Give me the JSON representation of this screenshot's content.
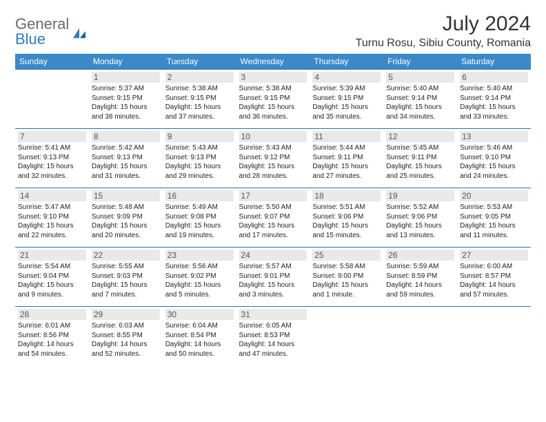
{
  "logo": {
    "text1": "General",
    "text2": "Blue"
  },
  "title": "July 2024",
  "location": "Turnu Rosu, Sibiu County, Romania",
  "colors": {
    "header_bg": "#3b89c9",
    "header_text": "#ffffff",
    "border": "#2f6fa3",
    "daynum_bg": "#e9e9e9",
    "logo_gray": "#6a6a6a",
    "logo_blue": "#2f7bbf"
  },
  "weekdays": [
    "Sunday",
    "Monday",
    "Tuesday",
    "Wednesday",
    "Thursday",
    "Friday",
    "Saturday"
  ],
  "weeks": [
    [
      null,
      {
        "d": "1",
        "sr": "5:37 AM",
        "ss": "9:15 PM",
        "dl": "15 hours and 38 minutes."
      },
      {
        "d": "2",
        "sr": "5:38 AM",
        "ss": "9:15 PM",
        "dl": "15 hours and 37 minutes."
      },
      {
        "d": "3",
        "sr": "5:38 AM",
        "ss": "9:15 PM",
        "dl": "15 hours and 36 minutes."
      },
      {
        "d": "4",
        "sr": "5:39 AM",
        "ss": "9:15 PM",
        "dl": "15 hours and 35 minutes."
      },
      {
        "d": "5",
        "sr": "5:40 AM",
        "ss": "9:14 PM",
        "dl": "15 hours and 34 minutes."
      },
      {
        "d": "6",
        "sr": "5:40 AM",
        "ss": "9:14 PM",
        "dl": "15 hours and 33 minutes."
      }
    ],
    [
      {
        "d": "7",
        "sr": "5:41 AM",
        "ss": "9:13 PM",
        "dl": "15 hours and 32 minutes."
      },
      {
        "d": "8",
        "sr": "5:42 AM",
        "ss": "9:13 PM",
        "dl": "15 hours and 31 minutes."
      },
      {
        "d": "9",
        "sr": "5:43 AM",
        "ss": "9:13 PM",
        "dl": "15 hours and 29 minutes."
      },
      {
        "d": "10",
        "sr": "5:43 AM",
        "ss": "9:12 PM",
        "dl": "15 hours and 28 minutes."
      },
      {
        "d": "11",
        "sr": "5:44 AM",
        "ss": "9:11 PM",
        "dl": "15 hours and 27 minutes."
      },
      {
        "d": "12",
        "sr": "5:45 AM",
        "ss": "9:11 PM",
        "dl": "15 hours and 25 minutes."
      },
      {
        "d": "13",
        "sr": "5:46 AM",
        "ss": "9:10 PM",
        "dl": "15 hours and 24 minutes."
      }
    ],
    [
      {
        "d": "14",
        "sr": "5:47 AM",
        "ss": "9:10 PM",
        "dl": "15 hours and 22 minutes."
      },
      {
        "d": "15",
        "sr": "5:48 AM",
        "ss": "9:09 PM",
        "dl": "15 hours and 20 minutes."
      },
      {
        "d": "16",
        "sr": "5:49 AM",
        "ss": "9:08 PM",
        "dl": "15 hours and 19 minutes."
      },
      {
        "d": "17",
        "sr": "5:50 AM",
        "ss": "9:07 PM",
        "dl": "15 hours and 17 minutes."
      },
      {
        "d": "18",
        "sr": "5:51 AM",
        "ss": "9:06 PM",
        "dl": "15 hours and 15 minutes."
      },
      {
        "d": "19",
        "sr": "5:52 AM",
        "ss": "9:06 PM",
        "dl": "15 hours and 13 minutes."
      },
      {
        "d": "20",
        "sr": "5:53 AM",
        "ss": "9:05 PM",
        "dl": "15 hours and 11 minutes."
      }
    ],
    [
      {
        "d": "21",
        "sr": "5:54 AM",
        "ss": "9:04 PM",
        "dl": "15 hours and 9 minutes."
      },
      {
        "d": "22",
        "sr": "5:55 AM",
        "ss": "9:03 PM",
        "dl": "15 hours and 7 minutes."
      },
      {
        "d": "23",
        "sr": "5:56 AM",
        "ss": "9:02 PM",
        "dl": "15 hours and 5 minutes."
      },
      {
        "d": "24",
        "sr": "5:57 AM",
        "ss": "9:01 PM",
        "dl": "15 hours and 3 minutes."
      },
      {
        "d": "25",
        "sr": "5:58 AM",
        "ss": "9:00 PM",
        "dl": "15 hours and 1 minute."
      },
      {
        "d": "26",
        "sr": "5:59 AM",
        "ss": "8:59 PM",
        "dl": "14 hours and 59 minutes."
      },
      {
        "d": "27",
        "sr": "6:00 AM",
        "ss": "8:57 PM",
        "dl": "14 hours and 57 minutes."
      }
    ],
    [
      {
        "d": "28",
        "sr": "6:01 AM",
        "ss": "8:56 PM",
        "dl": "14 hours and 54 minutes."
      },
      {
        "d": "29",
        "sr": "6:03 AM",
        "ss": "8:55 PM",
        "dl": "14 hours and 52 minutes."
      },
      {
        "d": "30",
        "sr": "6:04 AM",
        "ss": "8:54 PM",
        "dl": "14 hours and 50 minutes."
      },
      {
        "d": "31",
        "sr": "6:05 AM",
        "ss": "8:53 PM",
        "dl": "14 hours and 47 minutes."
      },
      null,
      null,
      null
    ]
  ],
  "labels": {
    "sunrise": "Sunrise:",
    "sunset": "Sunset:",
    "daylight": "Daylight:"
  }
}
